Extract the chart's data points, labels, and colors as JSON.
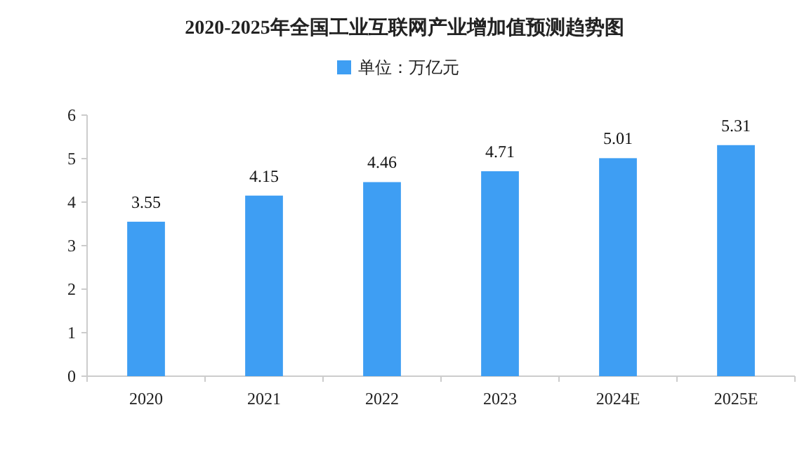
{
  "chart_data": {
    "type": "bar",
    "title": "2020-2025年全国工业互联网产业增加值预测趋势图",
    "categories": [
      "2020",
      "2021",
      "2022",
      "2023",
      "2024E",
      "2025E"
    ],
    "series": [
      {
        "name": "单位：万亿元",
        "color": "#3e9ef3",
        "values": [
          3.55,
          4.15,
          4.46,
          4.71,
          5.01,
          5.31
        ]
      }
    ],
    "ylim": [
      0,
      6
    ],
    "yticks": [
      0,
      1,
      2,
      3,
      4,
      5,
      6
    ],
    "data_labels": true,
    "legend": "top",
    "grid": false
  }
}
